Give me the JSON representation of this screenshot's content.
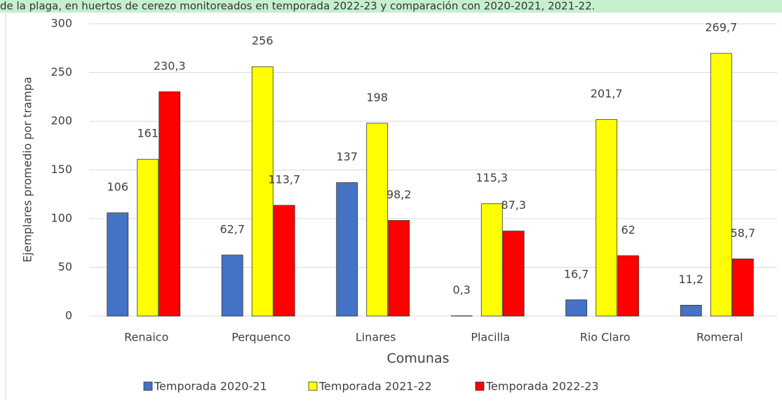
{
  "caption": "de la plaga, en huertos de cerezo monitoreados en temporada 2022-23 y comparación con 2020-2021, 2021-22.",
  "chart_data": {
    "type": "bar",
    "xlabel": "Comunas",
    "ylabel": "Ejemplares promedio por trampa",
    "categories": [
      "Renaico",
      "Perquenco",
      "Linares",
      "Placilla",
      "Rio Claro",
      "Romeral"
    ],
    "series": [
      {
        "name": "Temporada 2020-21",
        "color": "#4472c4",
        "values": [
          106,
          62.7,
          137,
          0.3,
          16.7,
          11.2
        ],
        "value_labels": [
          "106",
          "62,7",
          "137",
          "0,3",
          "16,7",
          "11,2"
        ]
      },
      {
        "name": "Temporada 2021-22",
        "color": "#ffff00",
        "values": [
          161,
          256,
          198,
          115.3,
          201.7,
          269.7
        ],
        "value_labels": [
          "161",
          "256",
          "198",
          "115,3",
          "201,7",
          "269,7"
        ]
      },
      {
        "name": "Temporada 2022-23",
        "color": "#ff0000",
        "values": [
          230.3,
          113.7,
          98.2,
          87.3,
          62,
          58.7
        ],
        "value_labels": [
          "230,3",
          "113,7",
          "98,2",
          "87,3",
          "62",
          "58,7"
        ]
      }
    ],
    "ylim": [
      0,
      300
    ],
    "yticks": [
      0,
      50,
      100,
      150,
      200,
      250,
      300
    ],
    "grid": true,
    "legend": "bottom"
  }
}
